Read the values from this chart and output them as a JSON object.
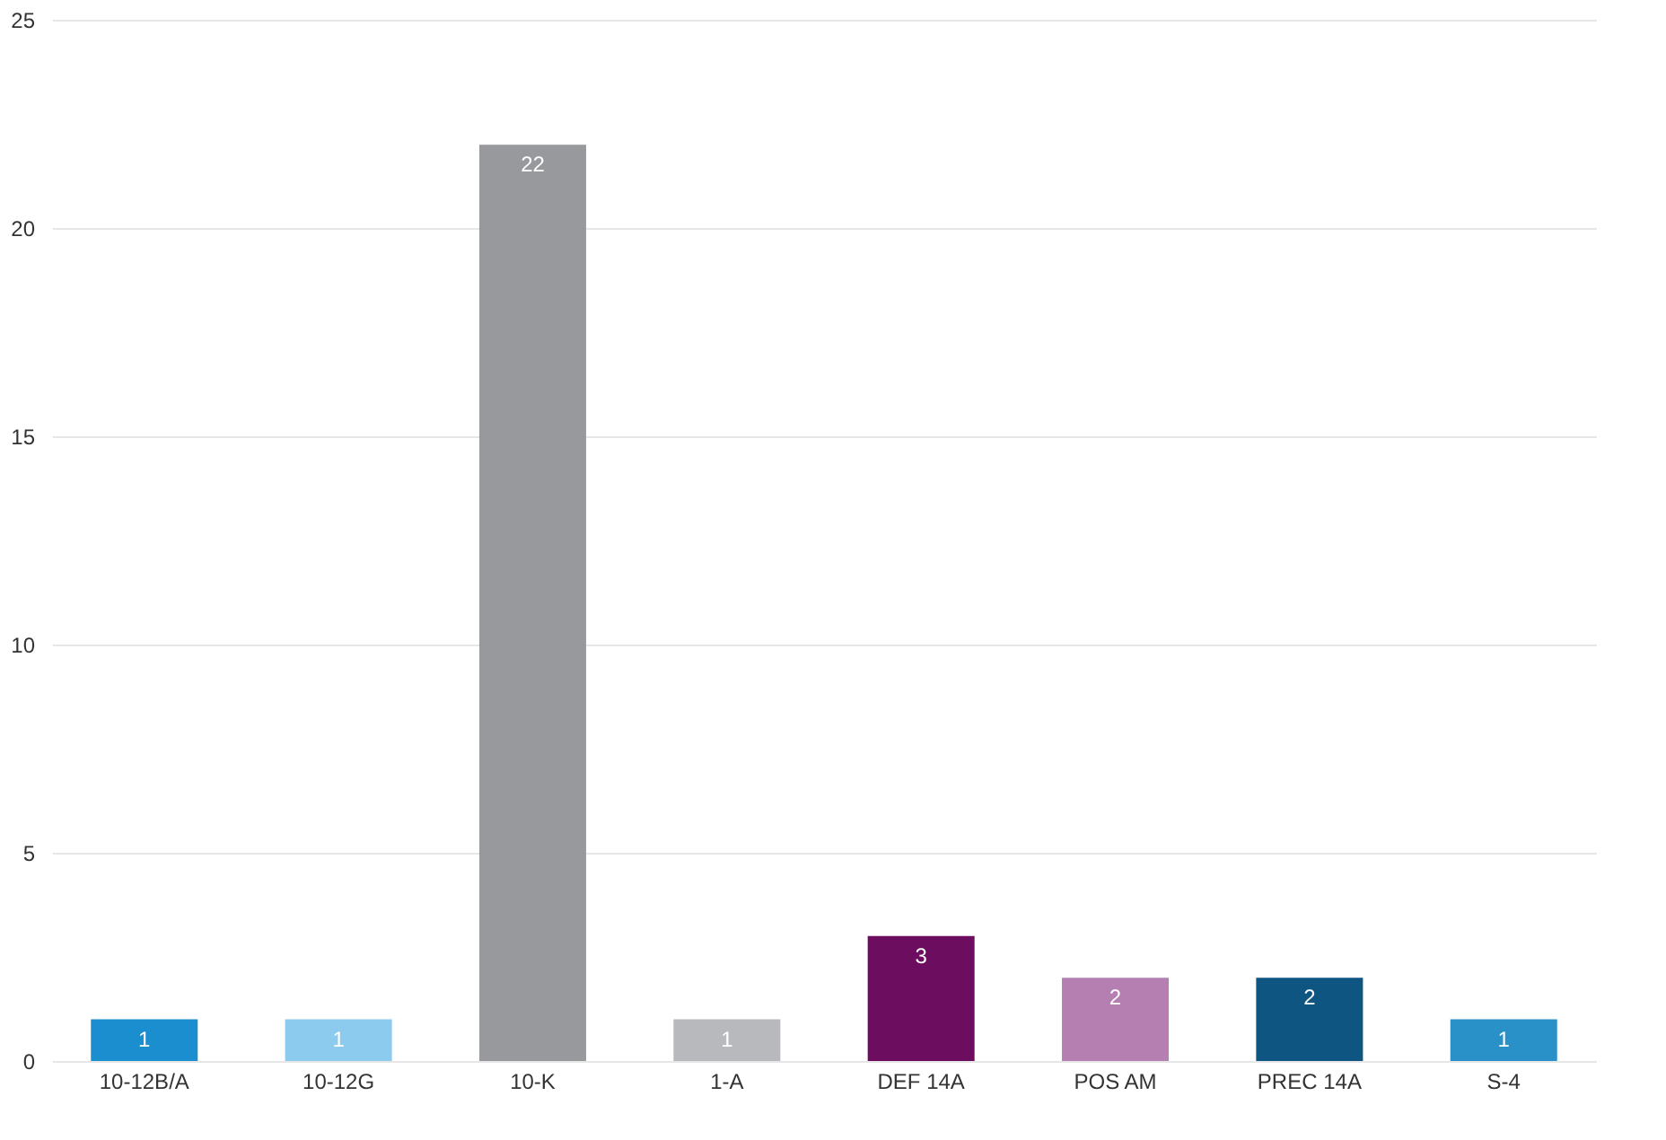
{
  "chart_data": {
    "type": "bar",
    "categories": [
      "10-12B/A",
      "10-12G",
      "10-K",
      "1-A",
      "DEF 14A",
      "POS AM",
      "PREC 14A",
      "S-4"
    ],
    "values": [
      1,
      1,
      22,
      1,
      3,
      2,
      2,
      1
    ],
    "colors": [
      "#1b8ed0",
      "#8ccbed",
      "#98999d",
      "#b8b9bc",
      "#6c0d5f",
      "#b67fb2",
      "#0e5582",
      "#2a90c8"
    ],
    "ylim": [
      0,
      25
    ],
    "yticks": [
      0,
      5,
      10,
      15,
      20,
      25
    ],
    "grid": "y",
    "data_labels": true,
    "legend": false
  }
}
